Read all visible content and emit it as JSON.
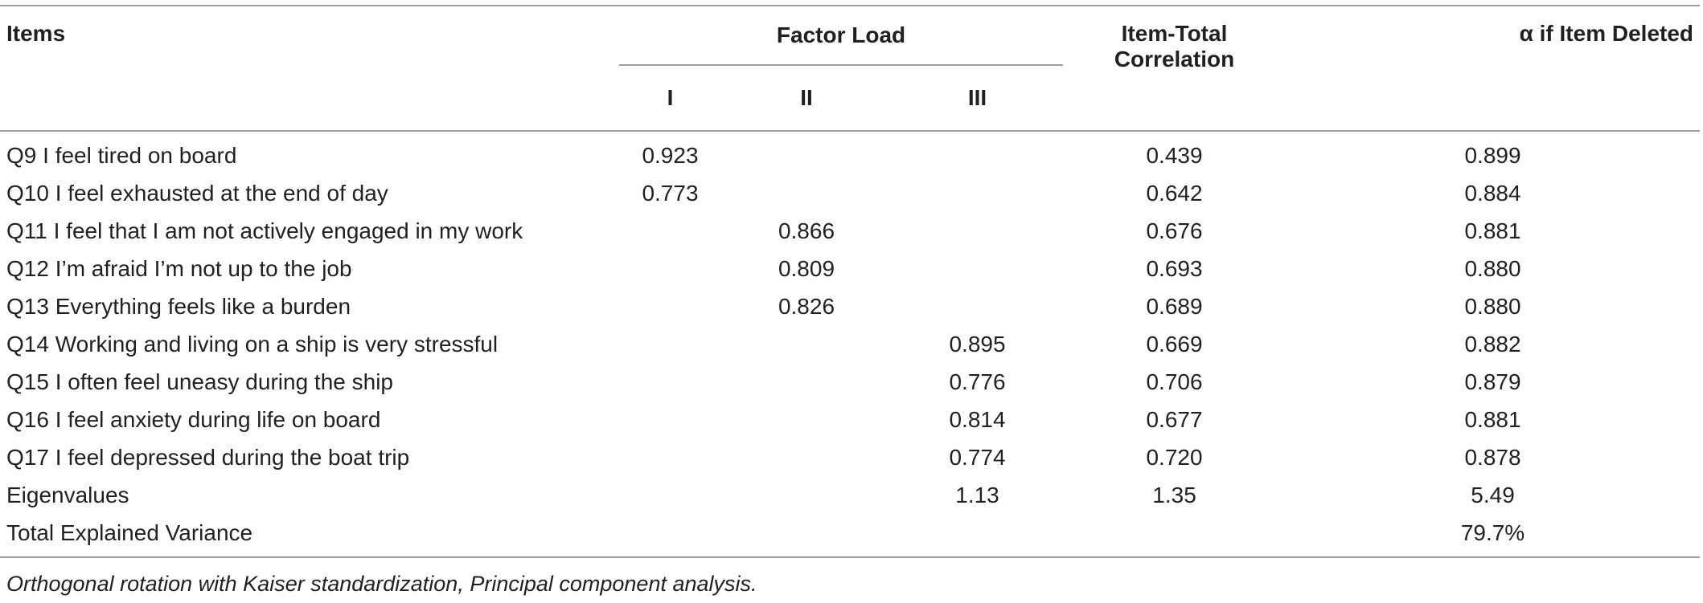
{
  "table": {
    "headers": {
      "items": "Items",
      "factor_load": "Factor Load",
      "factors": [
        "I",
        "II",
        "III"
      ],
      "item_total": "Item-Total Correlation",
      "alpha_deleted": "α if Item Deleted"
    },
    "rows": [
      {
        "item": "Q9 I feel tired on board",
        "f1": "0.923",
        "f2": "",
        "f3": "",
        "itc": "0.439",
        "alpha": "0.899"
      },
      {
        "item": "Q10 I feel exhausted at the end of day",
        "f1": "0.773",
        "f2": "",
        "f3": "",
        "itc": "0.642",
        "alpha": "0.884"
      },
      {
        "item": "Q11 I feel that I am not actively engaged in my work",
        "f1": "",
        "f2": "0.866",
        "f3": "",
        "itc": "0.676",
        "alpha": "0.881"
      },
      {
        "item": "Q12 I’m afraid I’m not up to the job",
        "f1": "",
        "f2": "0.809",
        "f3": "",
        "itc": "0.693",
        "alpha": "0.880"
      },
      {
        "item": "Q13 Everything feels like a burden",
        "f1": "",
        "f2": "0.826",
        "f3": "",
        "itc": "0.689",
        "alpha": "0.880"
      },
      {
        "item": "Q14 Working and living on a ship is very stressful",
        "f1": "",
        "f2": "",
        "f3": "0.895",
        "itc": "0.669",
        "alpha": "0.882"
      },
      {
        "item": "Q15 I often feel uneasy during the ship",
        "f1": "",
        "f2": "",
        "f3": "0.776",
        "itc": "0.706",
        "alpha": "0.879"
      },
      {
        "item": "Q16 I feel anxiety during life on board",
        "f1": "",
        "f2": "",
        "f3": "0.814",
        "itc": "0.677",
        "alpha": "0.881"
      },
      {
        "item": "Q17 I feel depressed during the boat trip",
        "f1": "",
        "f2": "",
        "f3": "0.774",
        "itc": "0.720",
        "alpha": "0.878"
      },
      {
        "item": "Eigenvalues",
        "f1": "",
        "f2": "",
        "f3": "1.13",
        "itc": "1.35",
        "alpha": "5.49"
      },
      {
        "item": "Total Explained Variance",
        "f1": "",
        "f2": "",
        "f3": "",
        "itc": "",
        "alpha": "79.7%"
      }
    ]
  },
  "note": "Orthogonal rotation with Kaiser standardization, Principal component analysis."
}
